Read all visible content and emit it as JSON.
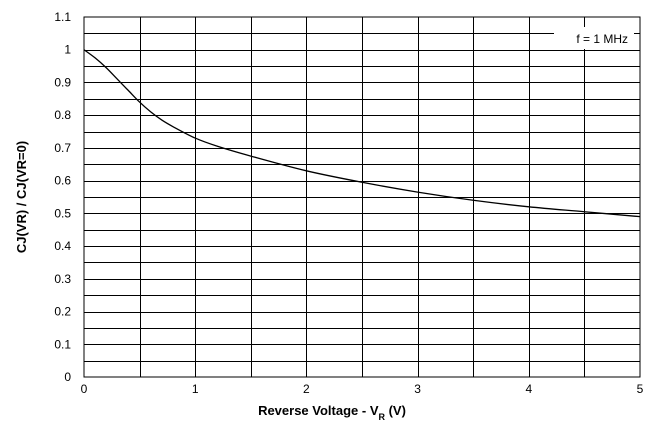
{
  "chart_data": {
    "type": "line",
    "xlim": [
      0,
      5
    ],
    "ylim": [
      0,
      1.1
    ],
    "x_ticks": [
      "0",
      "1",
      "2",
      "3",
      "4",
      "5"
    ],
    "y_ticks": [
      "0",
      "0.1",
      "0.2",
      "0.3",
      "0.4",
      "0.5",
      "0.6",
      "0.7",
      "0.8",
      "0.9",
      "1",
      "1.1"
    ],
    "x_minor_step": 0.5,
    "y_minor_step": 0.05,
    "grid": true,
    "ylabel": "CJ(VR) / CJ(VR=0)",
    "xlabel": {
      "prefix": "Reverse Voltage - V",
      "subscript": "R",
      "suffix": " (V)"
    },
    "annotation": {
      "text": "f = 1 MHz",
      "placement": "top-right"
    },
    "series": [
      {
        "x": [
          0,
          0.1,
          0.2,
          0.3,
          0.4,
          0.5,
          0.6,
          0.7,
          0.8,
          1.0,
          1.2,
          1.5,
          2.0,
          2.5,
          3.0,
          3.5,
          4.0,
          4.5,
          5.0
        ],
        "values": [
          1.0,
          0.975,
          0.945,
          0.91,
          0.875,
          0.84,
          0.81,
          0.785,
          0.765,
          0.73,
          0.705,
          0.675,
          0.63,
          0.595,
          0.565,
          0.54,
          0.52,
          0.505,
          0.49
        ]
      }
    ]
  }
}
